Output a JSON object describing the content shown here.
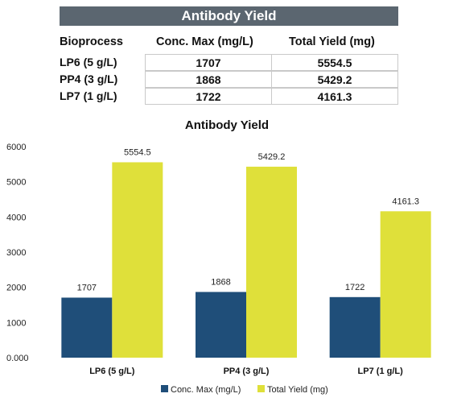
{
  "table": {
    "title": "Antibody Yield",
    "headers": [
      "Bioprocess",
      "Conc. Max (mg/L)",
      "Total Yield (mg)"
    ],
    "rows": [
      {
        "bioprocess": "LP6 (5 g/L)",
        "conc_max": "1707",
        "total_yield": "5554.5"
      },
      {
        "bioprocess": "PP4 (3 g/L)",
        "conc_max": "1868",
        "total_yield": "5429.2"
      },
      {
        "bioprocess": "LP7 (1 g/L)",
        "conc_max": "1722",
        "total_yield": "4161.3"
      }
    ]
  },
  "chart_data": {
    "type": "bar",
    "title": "Antibody Yield",
    "categories": [
      "LP6 (5 g/L)",
      "PP4 (3 g/L)",
      "LP7 (1 g/L)"
    ],
    "series": [
      {
        "name": "Conc. Max (mg/L)",
        "values": [
          1707,
          1868,
          1722
        ],
        "labels": [
          "1707",
          "1868",
          "1722"
        ],
        "color": "#1f4e79"
      },
      {
        "name": "Total Yield (mg)",
        "values": [
          5554.5,
          5429.2,
          4161.3
        ],
        "labels": [
          "5554.5",
          "5429.2",
          "4161.3"
        ],
        "color": "#dfe03a"
      }
    ],
    "ylim": [
      0,
      6000
    ],
    "yticks": [
      0,
      1000,
      2000,
      3000,
      4000,
      5000,
      6000
    ],
    "ytick_labels": [
      "0.000",
      "1000",
      "2000",
      "3000",
      "4000",
      "5000",
      "6000"
    ],
    "xlabel": "",
    "ylabel": "",
    "grid": false,
    "legend_position": "bottom"
  }
}
